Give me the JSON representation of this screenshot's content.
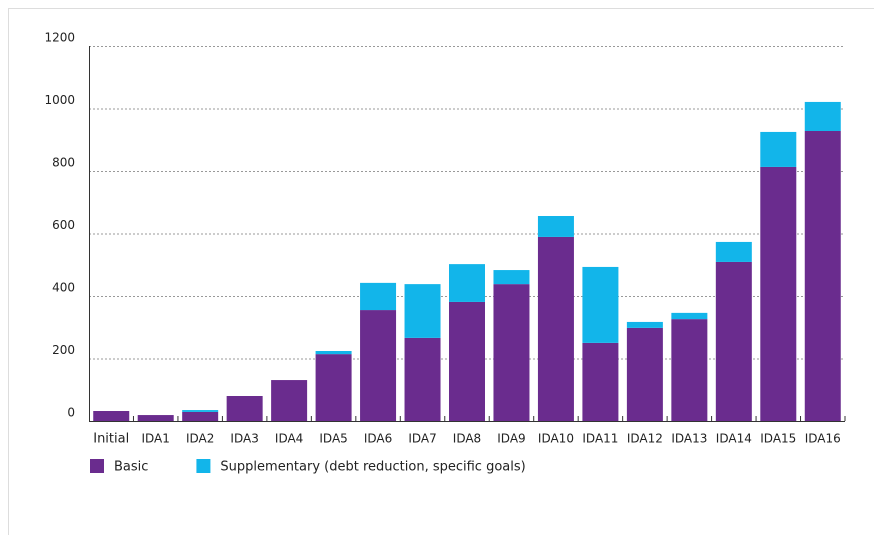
{
  "chart_data": {
    "type": "stacked_bar",
    "categories": [
      "Initial",
      "IDA1",
      "IDA2",
      "IDA3",
      "IDA4",
      "IDA5",
      "IDA6",
      "IDA7",
      "IDA8",
      "IDA9",
      "IDA10",
      "IDA11",
      "IDA12",
      "IDA13",
      "IDA14",
      "IDA15",
      "IDA16"
    ],
    "series": [
      {
        "name": "Basic",
        "color": "#6a2c8e",
        "values": [
          32,
          19,
          29,
          80,
          131,
          214,
          355,
          266,
          381,
          438,
          589,
          250,
          298,
          326,
          509,
          813,
          928
        ]
      },
      {
        "name": "Supplementary (debt reduction, specific goals)",
        "color": "#12b5ea",
        "values": [
          0,
          0,
          6,
          0,
          0,
          10,
          87,
          172,
          121,
          45,
          67,
          243,
          19,
          20,
          64,
          112,
          93
        ]
      }
    ],
    "ylim": [
      0,
      1200
    ],
    "yticks": [
      0,
      200,
      400,
      600,
      800,
      1000,
      1200
    ],
    "grid": true,
    "legend": "bottom"
  }
}
